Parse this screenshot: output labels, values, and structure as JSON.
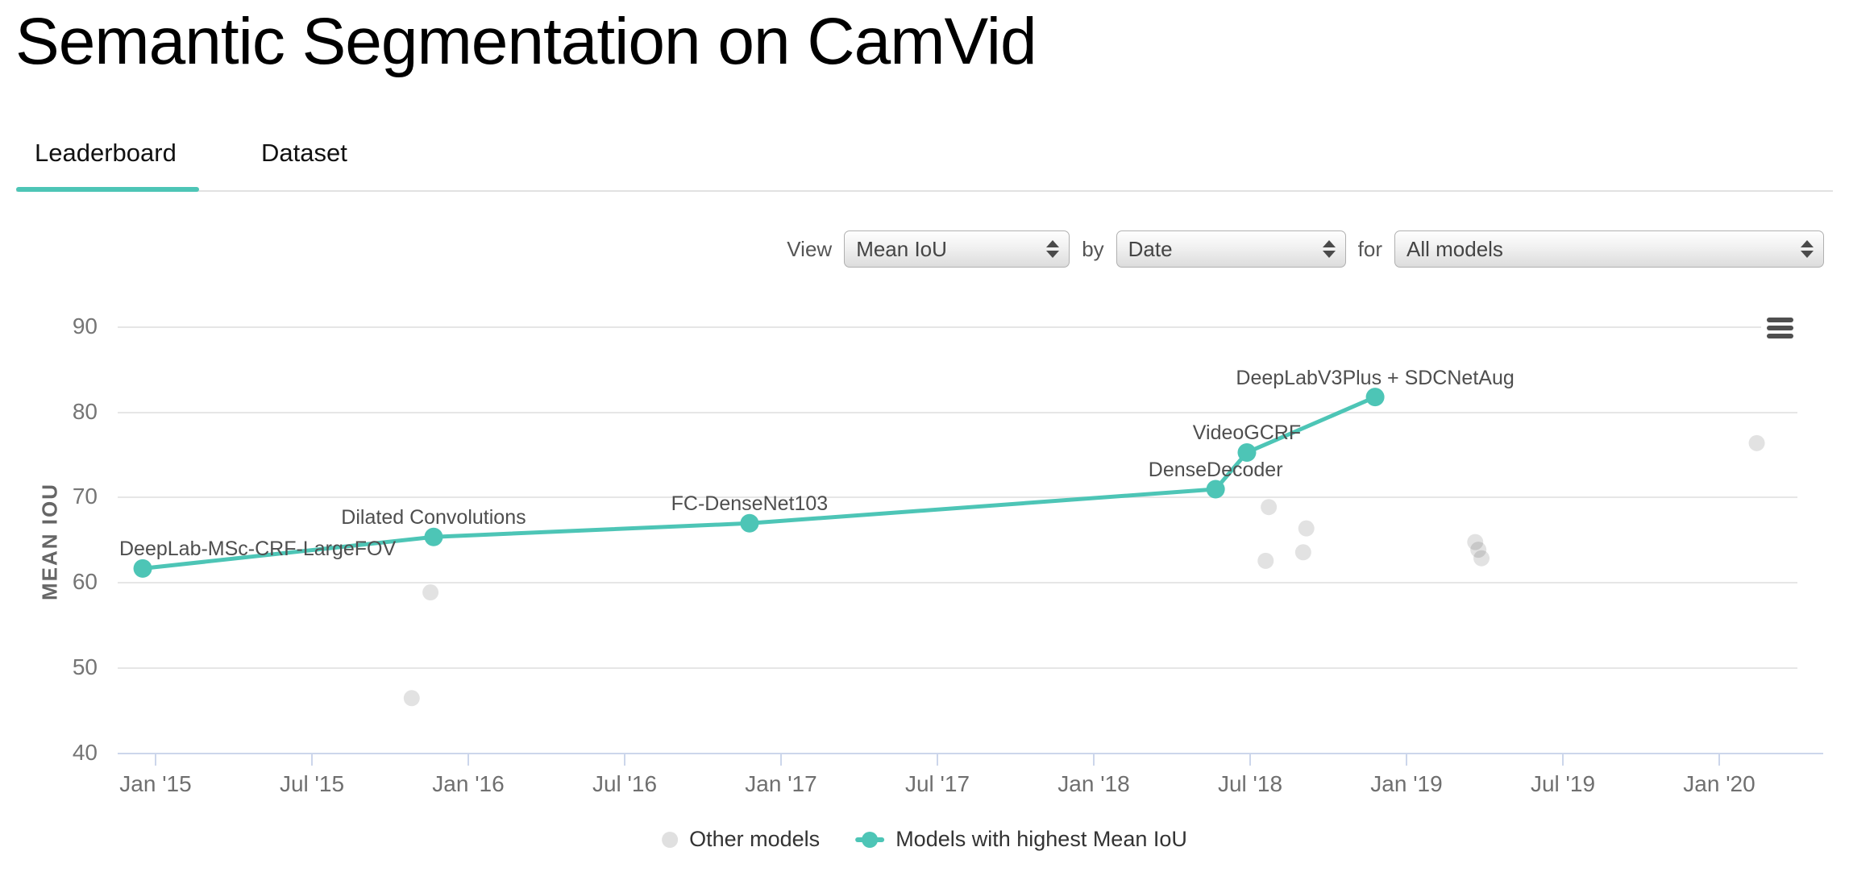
{
  "page": {
    "title": "Semantic Segmentation on CamVid"
  },
  "tabs": [
    {
      "label": "Leaderboard",
      "active": true
    },
    {
      "label": "Dataset",
      "active": false
    }
  ],
  "filters": {
    "view_label": "View",
    "view_value": "Mean IoU",
    "by_label": "by",
    "by_value": "Date",
    "for_label": "for",
    "for_value": "All models"
  },
  "colors": {
    "accent_teal": "#4dc5b6",
    "other_models_gray": "#e0e0e0",
    "gridline": "#e6e6e6",
    "axis_line": "#ccd6eb"
  },
  "chart_data": {
    "type": "line",
    "title": "",
    "xlabel": "",
    "ylabel": "MEAN IOU",
    "grid": true,
    "legend_position": "bottom",
    "x_axis": {
      "range": [
        2014.88,
        2020.25
      ],
      "ticks": [
        {
          "year": 2015.0,
          "label": "Jan '15"
        },
        {
          "year": 2015.5,
          "label": "Jul '15"
        },
        {
          "year": 2016.0,
          "label": "Jan '16"
        },
        {
          "year": 2016.5,
          "label": "Jul '16"
        },
        {
          "year": 2017.0,
          "label": "Jan '17"
        },
        {
          "year": 2017.5,
          "label": "Jul '17"
        },
        {
          "year": 2018.0,
          "label": "Jan '18"
        },
        {
          "year": 2018.5,
          "label": "Jul '18"
        },
        {
          "year": 2019.0,
          "label": "Jan '19"
        },
        {
          "year": 2019.5,
          "label": "Jul '19"
        },
        {
          "year": 2020.0,
          "label": "Jan '20"
        }
      ]
    },
    "y_axis": {
      "title": "MEAN IOU",
      "range": [
        40,
        91.4
      ],
      "ticks": [
        40,
        50,
        60,
        70,
        80,
        90
      ]
    },
    "series": [
      {
        "name": "Models with highest Mean IoU",
        "type": "line-with-markers",
        "color": "#4dc5b6",
        "points": [
          {
            "model": "DeepLab-MSc-CRF-LargeFOV",
            "x": 2014.96,
            "y": 61.6
          },
          {
            "model": "Dilated Convolutions",
            "x": 2015.89,
            "y": 65.3
          },
          {
            "model": "FC-DenseNet103",
            "x": 2016.9,
            "y": 66.9
          },
          {
            "model": "DenseDecoder",
            "x": 2018.39,
            "y": 70.9
          },
          {
            "model": "VideoGCRF",
            "x": 2018.49,
            "y": 75.2
          },
          {
            "model": "DeepLabV3Plus + SDCNetAug",
            "x": 2018.9,
            "y": 81.7
          }
        ]
      },
      {
        "name": "Other models",
        "type": "scatter",
        "color": "#e0e0e0",
        "points": [
          {
            "x": 2015.82,
            "y": 46.4
          },
          {
            "x": 2015.88,
            "y": 58.8
          },
          {
            "x": 2018.55,
            "y": 62.5
          },
          {
            "x": 2018.56,
            "y": 68.8
          },
          {
            "x": 2018.67,
            "y": 63.5
          },
          {
            "x": 2018.68,
            "y": 66.3
          },
          {
            "x": 2019.22,
            "y": 64.7
          },
          {
            "x": 2019.23,
            "y": 63.8
          },
          {
            "x": 2019.24,
            "y": 62.8
          },
          {
            "x": 2020.12,
            "y": 76.3
          }
        ]
      }
    ],
    "legend": [
      {
        "label": "Other models",
        "marker": "dot",
        "color": "#e0e0e0"
      },
      {
        "label": "Models with highest Mean IoU",
        "marker": "line-dot",
        "color": "#4dc5b6"
      }
    ]
  }
}
